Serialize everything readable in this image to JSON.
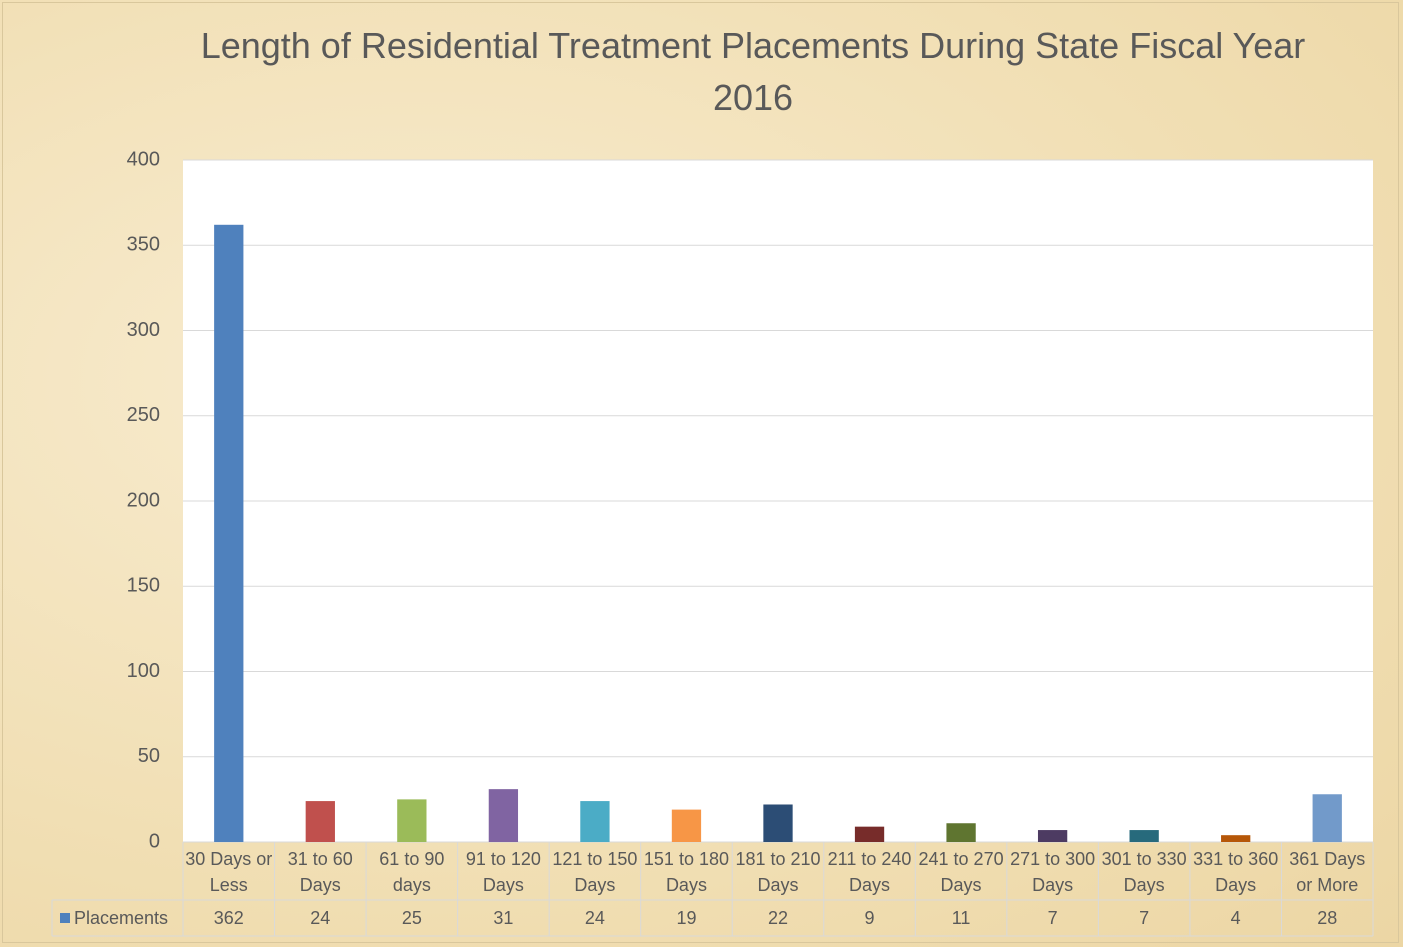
{
  "chart_data": {
    "type": "bar",
    "title": "Length of Residential Treatment Placements During State Fiscal Year 2016",
    "categories": [
      "30 Days or Less",
      "31 to 60 Days",
      "61 to 90 days",
      "91 to 120 Days",
      "121 to 150 Days",
      "151 to 180 Days",
      "181 to 210 Days",
      "211 to 240 Days",
      "241 to 270 Days",
      "271 to 300 Days",
      "301 to 330 Days",
      "331 to 360 Days",
      "361 Days or More"
    ],
    "series": [
      {
        "name": "Placements",
        "color": "#4f81bd",
        "values": [
          362,
          24,
          25,
          31,
          24,
          19,
          22,
          9,
          11,
          7,
          7,
          4,
          28
        ],
        "colors": [
          "#4f81bd",
          "#c0504d",
          "#9bbb59",
          "#8064a2",
          "#4bacc6",
          "#f79646",
          "#2c4d75",
          "#772c2a",
          "#5f7530",
          "#4d3b62",
          "#276a7c",
          "#b65708",
          "#729aca"
        ]
      }
    ],
    "ylim": [
      0,
      400
    ],
    "yticks": [
      0,
      50,
      100,
      150,
      200,
      250,
      300,
      350,
      400
    ],
    "grid": true
  }
}
